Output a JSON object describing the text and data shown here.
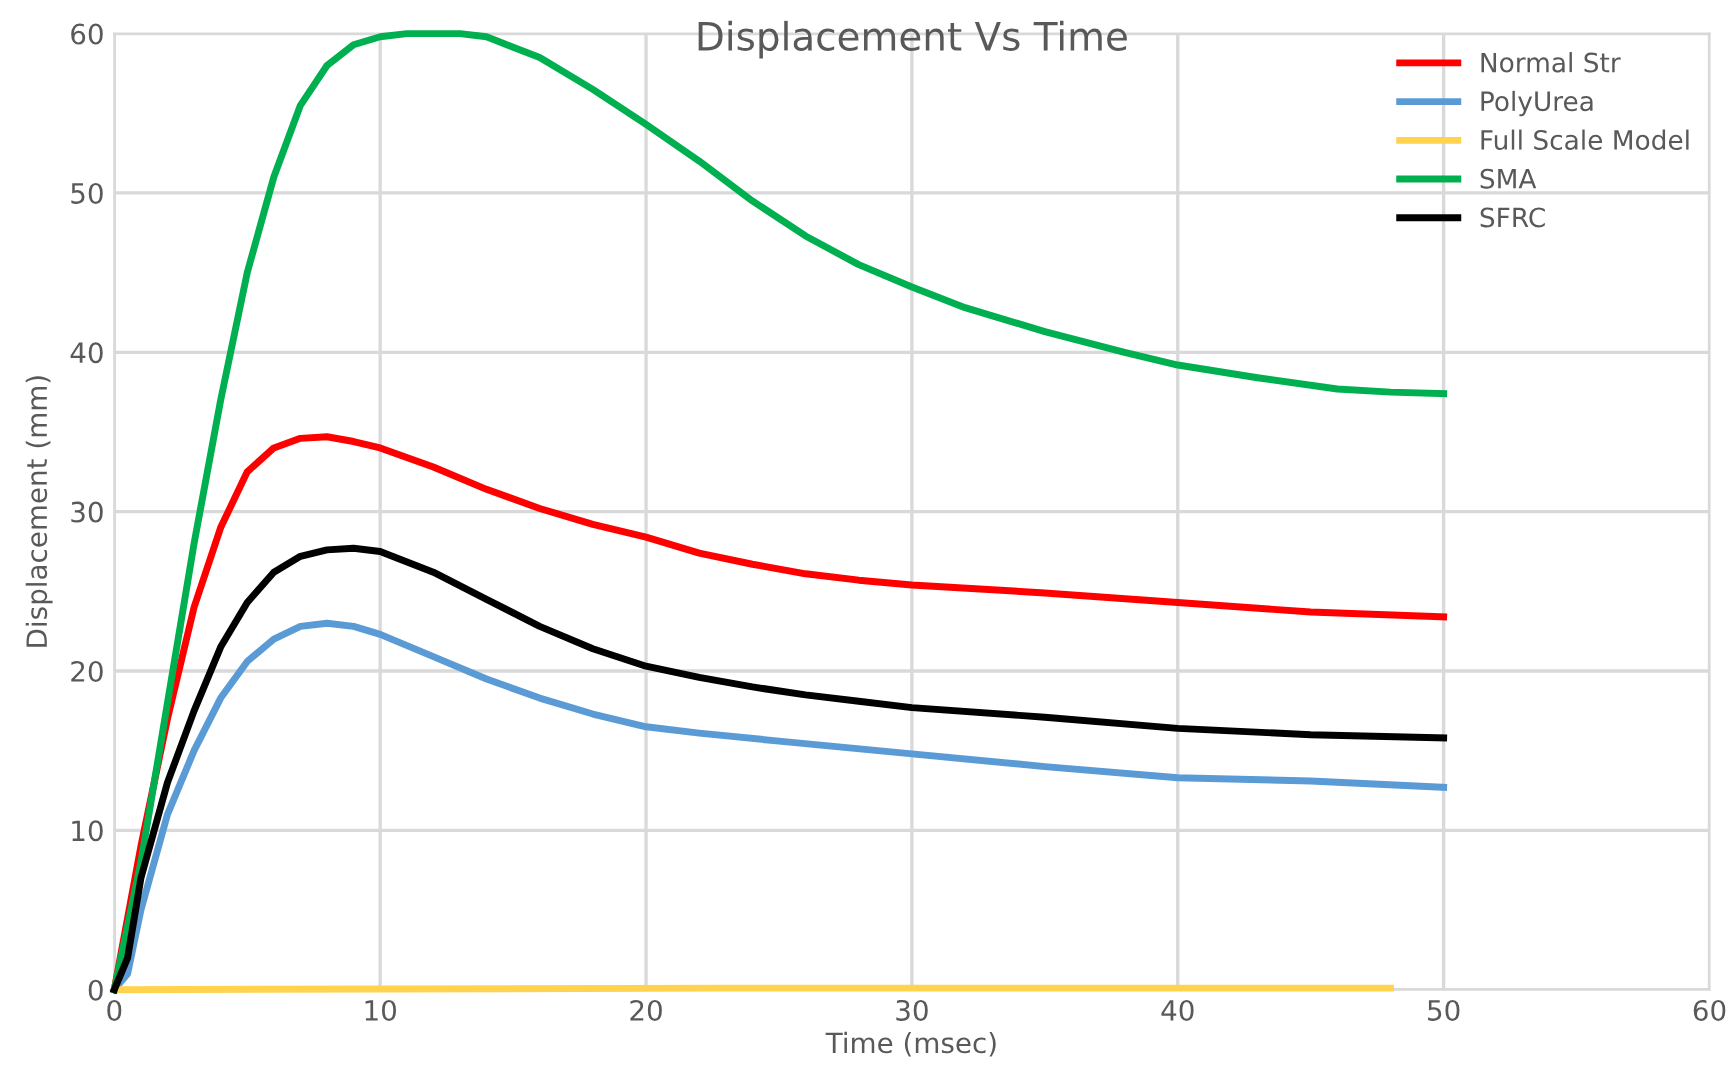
{
  "chart_data": {
    "type": "line",
    "title": "Displacement Vs Time",
    "xlabel": "Time (msec)",
    "ylabel": "Displacement (mm)",
    "xlim": [
      0,
      60
    ],
    "xticks": [
      0,
      10,
      20,
      30,
      40,
      50,
      60
    ],
    "ylim": [
      0,
      60
    ],
    "yticks": [
      0,
      10,
      20,
      30,
      40,
      50,
      60
    ],
    "grid": true,
    "legend": "top right",
    "marker": "none",
    "line_style": "solid",
    "series": [
      {
        "name": "Normal Str",
        "color": "#ff0000",
        "x": [
          0,
          1,
          2,
          3,
          4,
          5,
          6,
          7,
          8,
          9,
          10,
          12,
          14,
          16,
          18,
          20,
          22,
          24,
          26,
          28,
          30,
          35,
          40,
          45,
          50
        ],
        "values": [
          0,
          9,
          17,
          24,
          29,
          32.5,
          34,
          34.6,
          34.7,
          34.4,
          34,
          32.8,
          31.4,
          30.2,
          29.2,
          28.4,
          27.4,
          26.7,
          26.1,
          25.7,
          25.4,
          24.9,
          24.3,
          23.7,
          23.4
        ]
      },
      {
        "name": "PolyUrea",
        "color": "#5b9bd5",
        "x": [
          0,
          0.5,
          1,
          2,
          3,
          4,
          5,
          6,
          7,
          8,
          9,
          10,
          12,
          14,
          16,
          18,
          20,
          22,
          25,
          30,
          35,
          40,
          45,
          50
        ],
        "values": [
          0,
          1,
          5,
          11,
          15,
          18.3,
          20.6,
          22,
          22.8,
          23,
          22.8,
          22.3,
          20.9,
          19.5,
          18.3,
          17.3,
          16.5,
          16.1,
          15.6,
          14.8,
          14,
          13.3,
          13.1,
          12.7
        ]
      },
      {
        "name": "Full Scale Model",
        "color": "#ffd34d",
        "x": [
          0,
          23,
          48
        ],
        "values": [
          0,
          0.1,
          0.1
        ]
      },
      {
        "name": "SMA",
        "color": "#00b050",
        "x": [
          0,
          1,
          2,
          3,
          4,
          5,
          6,
          7,
          8,
          9,
          10,
          11,
          13,
          14,
          16,
          18,
          20,
          22,
          24,
          26,
          28,
          30,
          32,
          35,
          38,
          40,
          43,
          46,
          48,
          50
        ],
        "values": [
          0,
          8,
          18,
          28,
          37,
          45,
          51,
          55.5,
          58,
          59.3,
          59.8,
          60,
          60,
          59.8,
          58.5,
          56.5,
          54.3,
          52,
          49.5,
          47.3,
          45.5,
          44.1,
          42.8,
          41.3,
          40,
          39.2,
          38.4,
          37.7,
          37.5,
          37.4
        ]
      },
      {
        "name": "SFRC",
        "color": "#000000",
        "x": [
          0,
          0.5,
          1,
          2,
          3,
          4,
          5,
          6,
          7,
          8,
          9,
          10,
          12,
          14,
          16,
          18,
          20,
          22,
          24,
          26,
          28,
          30,
          35,
          40,
          45,
          50
        ],
        "values": [
          0,
          2,
          7,
          13,
          17.5,
          21.5,
          24.3,
          26.2,
          27.2,
          27.6,
          27.7,
          27.5,
          26.2,
          24.5,
          22.8,
          21.4,
          20.3,
          19.6,
          19,
          18.5,
          18.1,
          17.7,
          17.1,
          16.4,
          16,
          15.8
        ]
      }
    ]
  }
}
